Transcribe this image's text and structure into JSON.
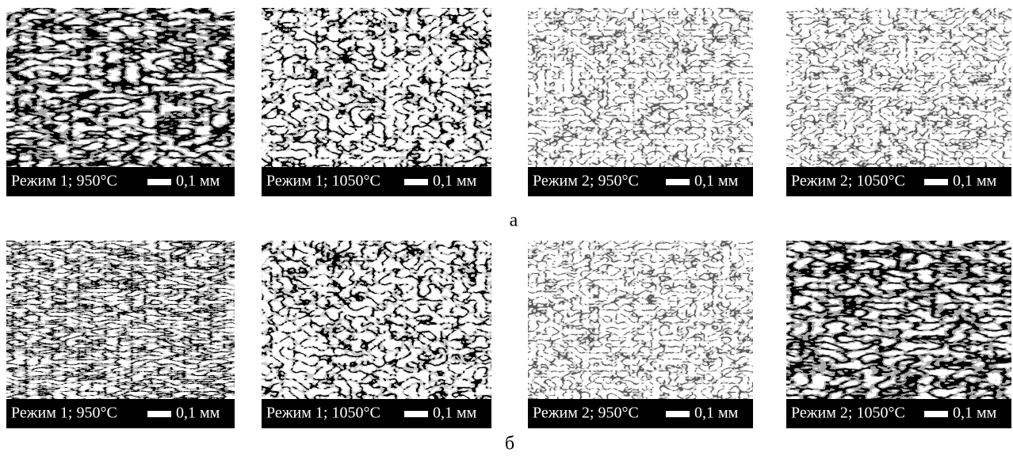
{
  "rows": [
    {
      "label": "а",
      "panels": [
        {
          "caption": "Режим 1; 950°C",
          "scale": "0,1 мм"
        },
        {
          "caption": "Режим 1; 1050°C",
          "scale": "0,1 мм"
        },
        {
          "caption": "Режим 2; 950°C",
          "scale": "0,1 мм"
        },
        {
          "caption": "Режим 2; 1050°C",
          "scale": "0,1 мм"
        }
      ]
    },
    {
      "label": "б",
      "panels": [
        {
          "caption": "Режим 1; 950°C",
          "scale": "0,1 мм"
        },
        {
          "caption": "Режим 1; 1050°C",
          "scale": "0,1 мм"
        },
        {
          "caption": "Режим 2; 950°C",
          "scale": "0,1 мм"
        },
        {
          "caption": "Режим 2; 1050°C",
          "scale": "0,1 мм"
        }
      ]
    }
  ]
}
